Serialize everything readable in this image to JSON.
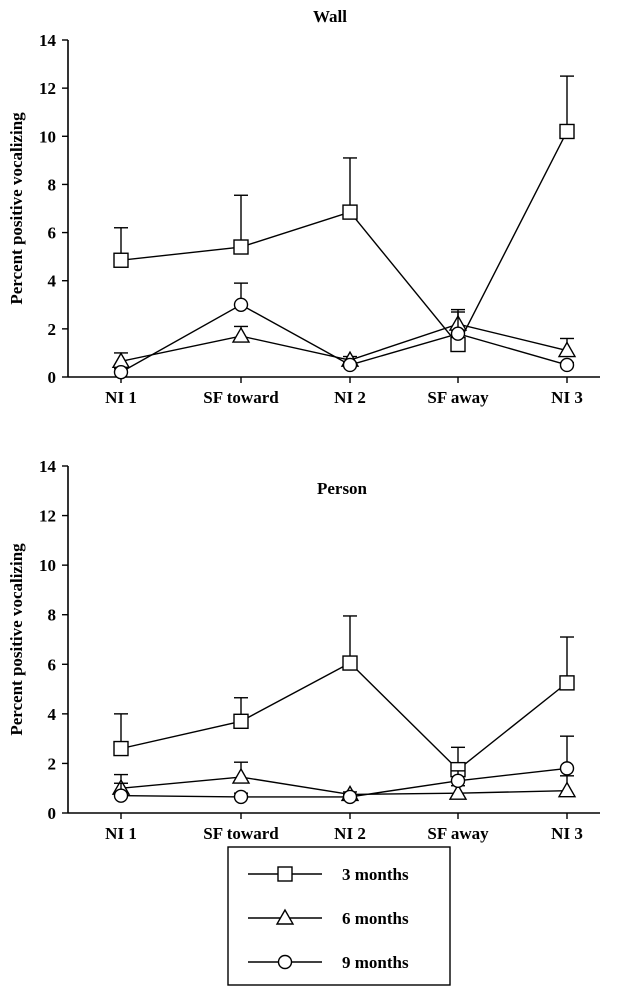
{
  "chart_data": [
    {
      "type": "line",
      "title": "Wall",
      "xlabel": "",
      "ylabel": "Percent positive vocalizing",
      "ylim": [
        0,
        14
      ],
      "yticks": [
        "0",
        "2",
        "4",
        "6",
        "8",
        "10",
        "12",
        "14"
      ],
      "categories": [
        "NI 1",
        "SF toward",
        "NI 2",
        "SF away",
        "NI 3"
      ],
      "grid": false,
      "series": [
        {
          "name": "3 months",
          "marker": "square",
          "values": [
            4.85,
            5.4,
            6.85,
            1.35,
            10.2
          ],
          "error": [
            1.35,
            2.15,
            2.25,
            0.6,
            2.3
          ]
        },
        {
          "name": "6 months",
          "marker": "triangle",
          "values": [
            0.65,
            1.7,
            0.7,
            2.2,
            1.1
          ],
          "error": [
            0.35,
            0.4,
            0.15,
            0.6,
            0.5
          ]
        },
        {
          "name": "9 months",
          "marker": "circle",
          "values": [
            0.2,
            3.0,
            0.5,
            1.8,
            0.5
          ],
          "error": [
            0.15,
            0.9,
            0.1,
            0.9,
            0.1
          ]
        }
      ]
    },
    {
      "type": "line",
      "title": "Person",
      "xlabel": "",
      "ylabel": "Percent positive vocalizing",
      "ylim": [
        0,
        14
      ],
      "yticks": [
        "0",
        "2",
        "4",
        "6",
        "8",
        "10",
        "12",
        "14"
      ],
      "categories": [
        "NI 1",
        "SF toward",
        "NI 2",
        "SF away",
        "NI 3"
      ],
      "grid": false,
      "series": [
        {
          "name": "3 months",
          "marker": "square",
          "values": [
            2.6,
            3.7,
            6.05,
            1.75,
            5.25
          ],
          "error": [
            1.4,
            0.95,
            1.9,
            0.9,
            1.85
          ]
        },
        {
          "name": "6 months",
          "marker": "triangle",
          "values": [
            1.0,
            1.45,
            0.75,
            0.8,
            0.9
          ],
          "error": [
            0.55,
            0.6,
            0.1,
            0.3,
            0.6
          ]
        },
        {
          "name": "9 months",
          "marker": "circle",
          "values": [
            0.7,
            0.65,
            0.65,
            1.3,
            1.8
          ],
          "error": [
            0.5,
            0.15,
            0.1,
            0.4,
            1.3
          ]
        }
      ]
    }
  ],
  "legend": {
    "placement": "bottom",
    "items": [
      {
        "label": "3 months",
        "marker": "square"
      },
      {
        "label": "6 months",
        "marker": "triangle"
      },
      {
        "label": "9 months",
        "marker": "circle"
      }
    ]
  }
}
